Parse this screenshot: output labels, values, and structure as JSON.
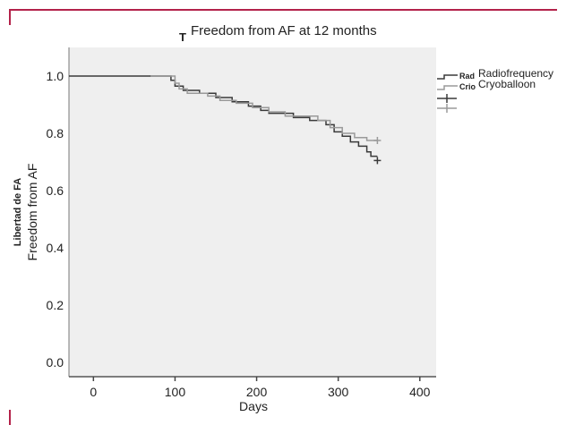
{
  "colors": {
    "frame": "#b3224a",
    "plot_background": "#efefef",
    "radiofrequency": "#3a3a3a",
    "cryoballoon": "#9a9a9a"
  },
  "chart_data": {
    "type": "line",
    "subtype": "kaplan-meier step curve",
    "title": "Freedom from AF at 12 months",
    "xlabel": "Days",
    "ylabel": "Freedom from AF",
    "ylabel_original": "Libertad de FA",
    "xlim": [
      -30,
      420
    ],
    "ylim": [
      -0.05,
      1.1
    ],
    "xticks": [
      "0",
      "100",
      "200",
      "300",
      "400"
    ],
    "yticks": [
      "0.0",
      "0.2",
      "0.4",
      "0.6",
      "0.8",
      "1.0"
    ],
    "grid": false,
    "legend_position": "right",
    "series": [
      {
        "name": "Radiofrequency",
        "legend_code": "Rad",
        "points": [
          [
            -30,
            1.0
          ],
          [
            95,
            1.0
          ],
          [
            95,
            0.985
          ],
          [
            100,
            0.985
          ],
          [
            100,
            0.965
          ],
          [
            110,
            0.965
          ],
          [
            110,
            0.95
          ],
          [
            130,
            0.95
          ],
          [
            130,
            0.94
          ],
          [
            150,
            0.94
          ],
          [
            150,
            0.925
          ],
          [
            170,
            0.925
          ],
          [
            170,
            0.91
          ],
          [
            190,
            0.91
          ],
          [
            190,
            0.895
          ],
          [
            205,
            0.895
          ],
          [
            205,
            0.88
          ],
          [
            215,
            0.88
          ],
          [
            215,
            0.87
          ],
          [
            245,
            0.87
          ],
          [
            245,
            0.855
          ],
          [
            265,
            0.855
          ],
          [
            265,
            0.845
          ],
          [
            285,
            0.845
          ],
          [
            285,
            0.83
          ],
          [
            295,
            0.83
          ],
          [
            295,
            0.805
          ],
          [
            305,
            0.805
          ],
          [
            305,
            0.79
          ],
          [
            315,
            0.79
          ],
          [
            315,
            0.77
          ],
          [
            325,
            0.77
          ],
          [
            325,
            0.755
          ],
          [
            335,
            0.755
          ],
          [
            335,
            0.735
          ],
          [
            340,
            0.735
          ],
          [
            340,
            0.72
          ],
          [
            348,
            0.72
          ]
        ],
        "censored": [
          [
            348,
            0.705
          ]
        ]
      },
      {
        "name": "Cryoballoon",
        "legend_code": "Crio",
        "points": [
          [
            70,
            1.0
          ],
          [
            100,
            1.0
          ],
          [
            100,
            0.975
          ],
          [
            105,
            0.975
          ],
          [
            105,
            0.955
          ],
          [
            115,
            0.955
          ],
          [
            115,
            0.94
          ],
          [
            140,
            0.94
          ],
          [
            140,
            0.93
          ],
          [
            155,
            0.93
          ],
          [
            155,
            0.915
          ],
          [
            175,
            0.915
          ],
          [
            175,
            0.905
          ],
          [
            195,
            0.905
          ],
          [
            195,
            0.89
          ],
          [
            215,
            0.89
          ],
          [
            215,
            0.875
          ],
          [
            235,
            0.875
          ],
          [
            235,
            0.86
          ],
          [
            275,
            0.86
          ],
          [
            275,
            0.845
          ],
          [
            290,
            0.845
          ],
          [
            290,
            0.82
          ],
          [
            305,
            0.82
          ],
          [
            305,
            0.8
          ],
          [
            320,
            0.8
          ],
          [
            320,
            0.785
          ],
          [
            335,
            0.785
          ],
          [
            335,
            0.775
          ],
          [
            348,
            0.775
          ]
        ],
        "censored": [
          [
            348,
            0.775
          ]
        ]
      }
    ]
  }
}
